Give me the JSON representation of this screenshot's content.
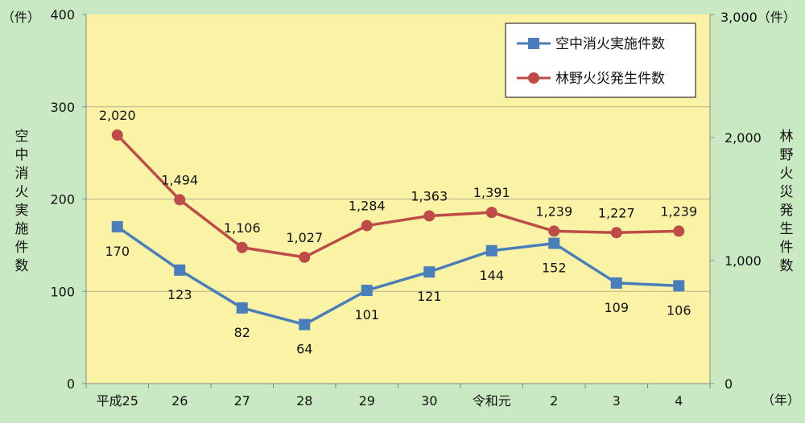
{
  "chart_data": {
    "type": "line",
    "categories": [
      "平成25",
      "26",
      "27",
      "28",
      "29",
      "30",
      "令和元",
      "2",
      "3",
      "4"
    ],
    "series": [
      {
        "name": "空中消火実施件数",
        "axis": "left",
        "color": "#4a7ebb",
        "marker": "square",
        "values": [
          170,
          123,
          82,
          64,
          101,
          121,
          144,
          152,
          109,
          106
        ],
        "labels": [
          "170",
          "123",
          "82",
          "64",
          "101",
          "121",
          "144",
          "152",
          "109",
          "106"
        ]
      },
      {
        "name": "林野火災発生件数",
        "axis": "right",
        "color": "#be4b48",
        "marker": "circle",
        "values": [
          2020,
          1494,
          1106,
          1027,
          1284,
          1363,
          1391,
          1239,
          1227,
          1239
        ],
        "labels": [
          "2,020",
          "1,494",
          "1,106",
          "1,027",
          "1,284",
          "1,363",
          "1,391",
          "1,239",
          "1,227",
          "1,239"
        ]
      }
    ],
    "y_left": {
      "label": "空中消火実施件数",
      "unit": "（件）",
      "range": [
        0,
        400
      ],
      "ticks": [
        0,
        100,
        200,
        300,
        400
      ],
      "tick_labels": [
        "0",
        "100",
        "200",
        "300",
        "400"
      ]
    },
    "y_right": {
      "label": "林野火災発生件数",
      "unit": "3,000（件）",
      "range": [
        0,
        3000
      ],
      "ticks": [
        0,
        1000,
        2000
      ],
      "tick_labels": [
        "0",
        "1,000",
        "2,000"
      ]
    },
    "x_unit": "（年）",
    "grid": true,
    "legend_position": "top-right",
    "colors": {
      "plot_bg": "#faf3a6",
      "page_bg": "#c9e9c2",
      "grid": "#b8b08c"
    }
  }
}
